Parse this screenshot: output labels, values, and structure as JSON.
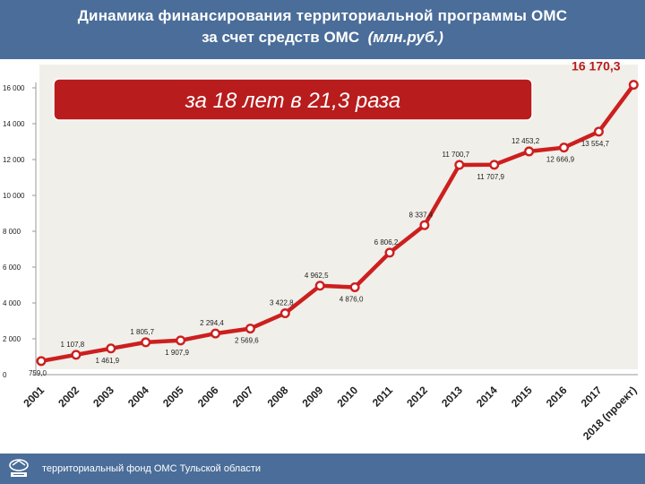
{
  "header": {
    "title_line1": "Динамика финансирования территориальной программы ОМС",
    "title_line2": "за счет средств ОМС",
    "title_unit": "(млн.руб.)"
  },
  "callout": {
    "text": "за 18 лет в 21,3 раза"
  },
  "footer": {
    "text": "территориальный фонд ОМС Тульской области"
  },
  "colors": {
    "header_bg": "#4a6d99",
    "line": "#cc1f1f",
    "callout_bg": "#b81c1c",
    "plot_bg": "#f1efe9"
  },
  "chart_data": {
    "type": "line",
    "title": "",
    "xlabel": "",
    "ylabel": "",
    "ylim": [
      0,
      16000
    ],
    "yticks": [
      "0",
      "2 000",
      "4 000",
      "6 000",
      "8 000",
      "10 000",
      "12 000",
      "14 000",
      "16 000"
    ],
    "grid": false,
    "categories": [
      "2001",
      "2002",
      "2003",
      "2004",
      "2005",
      "2006",
      "2007",
      "2008",
      "2009",
      "2010",
      "2011",
      "2012",
      "2013",
      "2014",
      "2015",
      "2016",
      "2017",
      "2018 (проект)"
    ],
    "values": [
      759.0,
      1107.8,
      1461.9,
      1805.7,
      1907.9,
      2294.4,
      2569.6,
      3422.8,
      4962.5,
      4876.0,
      6806.2,
      8337.4,
      11700.7,
      11707.9,
      12453.2,
      12666.9,
      13554.7,
      16170.3
    ],
    "data_labels": [
      "759,0",
      "1 107,8",
      "1 461,9",
      "1 805,7",
      "1 907,9",
      "2 294,4",
      "2 569,6",
      "3 422,8",
      "4 962,5",
      "4 876,0",
      "6 806,2",
      "8 337,4",
      "11 700,7",
      "11 707,9",
      "12 453,2",
      "12 666,9",
      "13 554,7",
      "16 170,3"
    ]
  }
}
